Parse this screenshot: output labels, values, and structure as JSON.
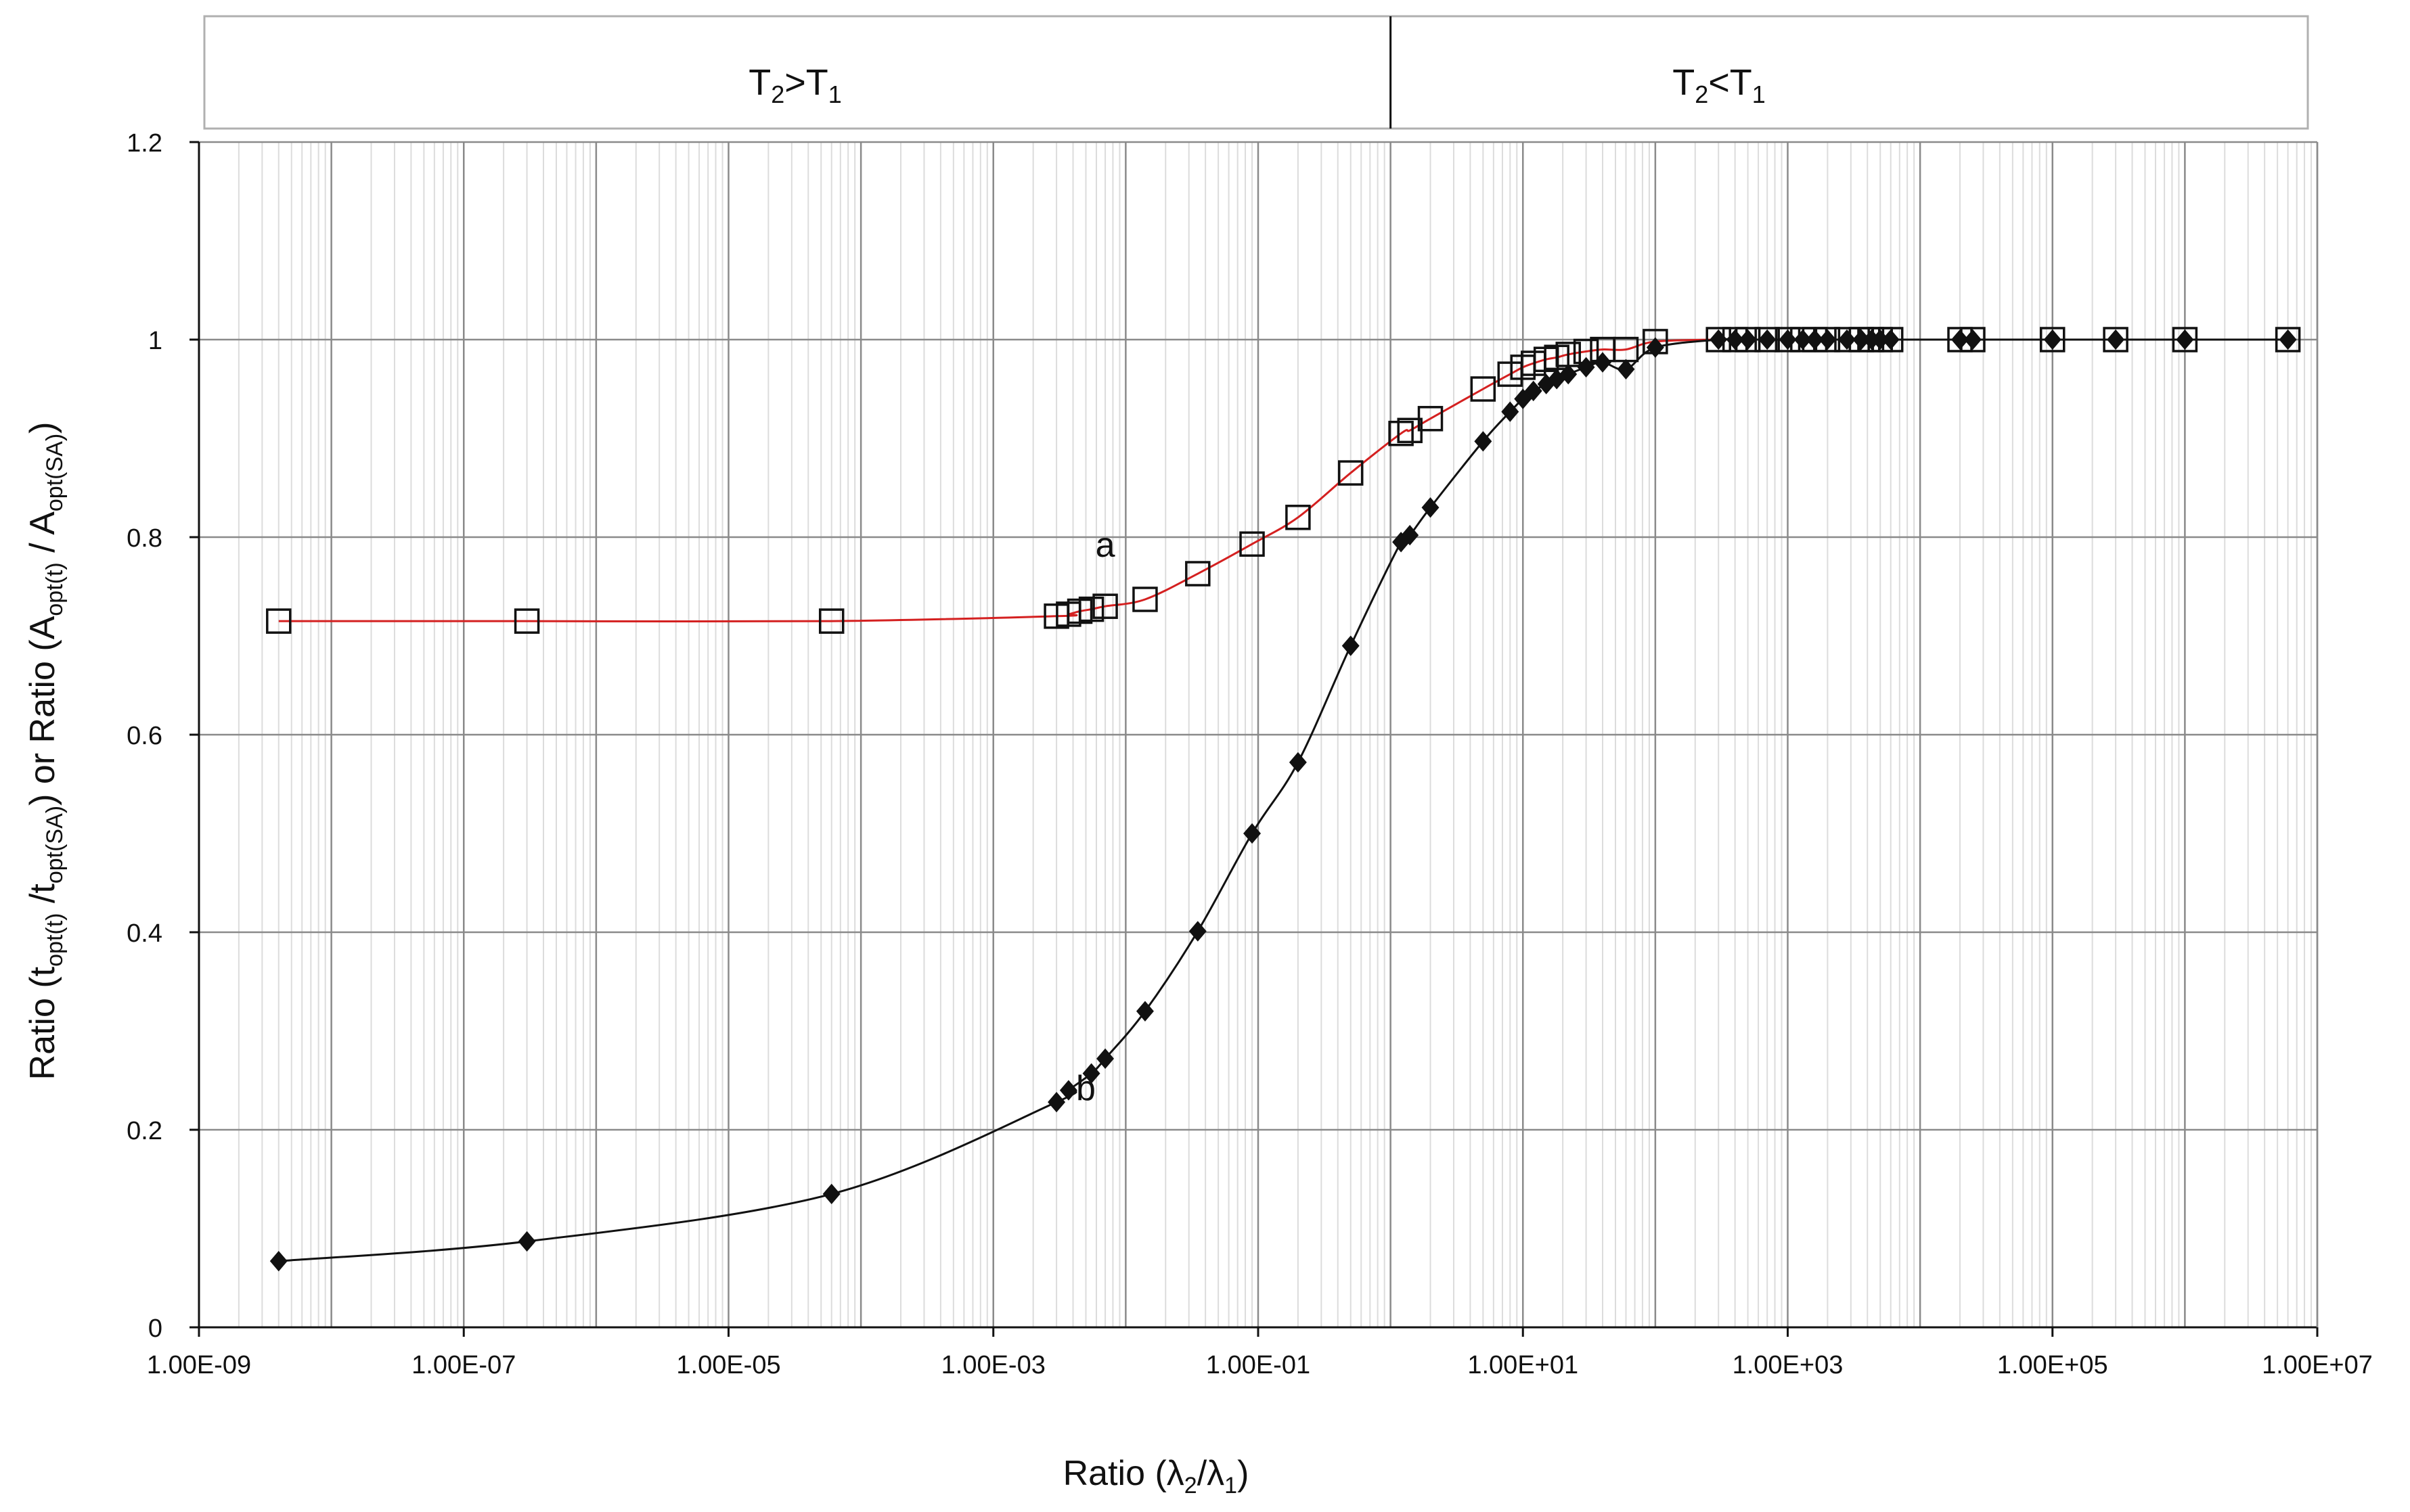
{
  "chart_data": {
    "type": "scatter",
    "title": "",
    "xscale": "log",
    "xlim": [
      "1.00E-09",
      "1.00E+07"
    ],
    "ylim": [
      0,
      1.2
    ],
    "grid": true,
    "x_ticks": [
      "1.00E-09",
      "1.00E-07",
      "1.00E-05",
      "1.00E-03",
      "1.00E-01",
      "1.00E+01",
      "1.00E+03",
      "1.00E+05",
      "1.00E+07"
    ],
    "y_ticks": [
      "0",
      "0.2",
      "0.4",
      "0.6",
      "0.8",
      "1",
      "1.2"
    ],
    "xlabel": {
      "main": "Ratio (λ",
      "sub1": "2",
      "mid": "/λ",
      "sub2": "1",
      "end": ")"
    },
    "ylabel": {
      "p1": "Ratio (t",
      "s1": "opt(t)",
      "p2": " /t",
      "s2": "opt(SA)",
      "p3": ") or Ratio (A",
      "s3": "opt(t)",
      "p4": " / A",
      "s4": "opt(SA)",
      "p5": ")"
    },
    "regions": [
      {
        "text": "T",
        "sub1": "2",
        "op": ">T",
        "sub2": "1"
      },
      {
        "text": "T",
        "sub1": "2",
        "op": "<T",
        "sub2": "1"
      }
    ],
    "region_divider_x": 1,
    "series": [
      {
        "name": "a",
        "color": "#d42020",
        "marker": "open-square",
        "points": [
          [
            4e-09,
            0.715
          ],
          [
            3e-07,
            0.715
          ],
          [
            6e-05,
            0.715
          ],
          [
            0.003,
            0.72
          ],
          [
            0.0037,
            0.722
          ],
          [
            0.0045,
            0.725
          ],
          [
            0.0055,
            0.727
          ],
          [
            0.007,
            0.73
          ],
          [
            0.014,
            0.737
          ],
          [
            0.035,
            0.763
          ],
          [
            0.09,
            0.793
          ],
          [
            0.2,
            0.82
          ],
          [
            0.5,
            0.865
          ],
          [
            1.2,
            0.905
          ],
          [
            1.4,
            0.908
          ],
          [
            2.0,
            0.92
          ],
          [
            5.0,
            0.95
          ],
          [
            8.0,
            0.965
          ],
          [
            10,
            0.972
          ],
          [
            12,
            0.976
          ],
          [
            15,
            0.98
          ],
          [
            18,
            0.982
          ],
          [
            22,
            0.985
          ],
          [
            30,
            0.988
          ],
          [
            40,
            0.99
          ],
          [
            60,
            0.99
          ],
          [
            100,
            0.998
          ],
          [
            300,
            1.0
          ],
          [
            400,
            1.0
          ],
          [
            500,
            1.0
          ],
          [
            700,
            1.0
          ],
          [
            1000,
            1.0
          ],
          [
            1300,
            1.0
          ],
          [
            1600,
            1.0
          ],
          [
            2000,
            1.0
          ],
          [
            2800,
            1.0
          ],
          [
            3600,
            1.0
          ],
          [
            4300,
            1.0
          ],
          [
            5000,
            1.0
          ],
          [
            6000,
            1.0
          ],
          [
            20000,
            1.0
          ],
          [
            25000,
            1.0
          ],
          [
            100000,
            1.0
          ],
          [
            300000,
            1.0
          ],
          [
            1000000,
            1.0
          ],
          [
            6000000,
            1.0
          ]
        ]
      },
      {
        "name": "b",
        "color": "#111111",
        "marker": "filled-diamond",
        "points": [
          [
            4e-09,
            0.067
          ],
          [
            3e-07,
            0.087
          ],
          [
            6e-05,
            0.135
          ],
          [
            0.003,
            0.228
          ],
          [
            0.0037,
            0.24
          ],
          [
            0.0055,
            0.257
          ],
          [
            0.007,
            0.272
          ],
          [
            0.014,
            0.32
          ],
          [
            0.035,
            0.401
          ],
          [
            0.09,
            0.5
          ],
          [
            0.2,
            0.572
          ],
          [
            0.5,
            0.69
          ],
          [
            1.2,
            0.795
          ],
          [
            1.4,
            0.802
          ],
          [
            2.0,
            0.83
          ],
          [
            5.0,
            0.897
          ],
          [
            8.0,
            0.927
          ],
          [
            10,
            0.94
          ],
          [
            12,
            0.948
          ],
          [
            15,
            0.955
          ],
          [
            18,
            0.96
          ],
          [
            22,
            0.965
          ],
          [
            30,
            0.972
          ],
          [
            40,
            0.977
          ],
          [
            60,
            0.97
          ],
          [
            100,
            0.992
          ],
          [
            300,
            1.0
          ],
          [
            400,
            1.0
          ],
          [
            500,
            1.0
          ],
          [
            700,
            1.0
          ],
          [
            1000,
            1.0
          ],
          [
            1300,
            1.0
          ],
          [
            1600,
            1.0
          ],
          [
            2000,
            1.0
          ],
          [
            2800,
            1.0
          ],
          [
            3600,
            1.0
          ],
          [
            4300,
            1.0
          ],
          [
            5000,
            1.0
          ],
          [
            6000,
            1.0
          ],
          [
            20000,
            1.0
          ],
          [
            25000,
            1.0
          ],
          [
            100000,
            1.0
          ],
          [
            300000,
            1.0
          ],
          [
            1000000,
            1.0
          ],
          [
            6000000,
            1.0
          ]
        ]
      }
    ],
    "series_labels": [
      {
        "text": "a",
        "x": 0.007,
        "y": 0.78
      },
      {
        "text": "b",
        "x": 0.005,
        "y": 0.23
      }
    ]
  }
}
